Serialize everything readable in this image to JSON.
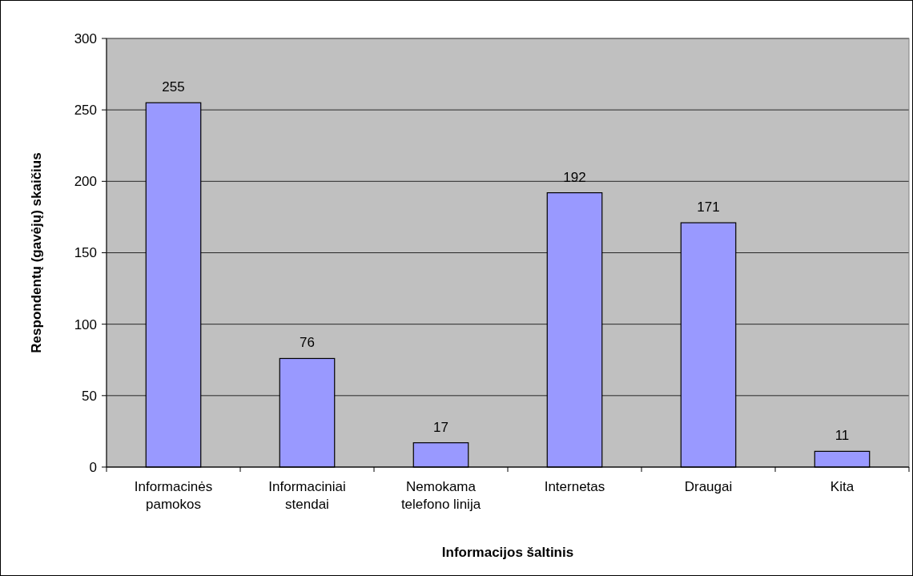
{
  "chart_data": {
    "type": "bar",
    "xlabel": "Informacijos šaltinis",
    "ylabel": "Respondentų (gavėjų) skaičius",
    "categories": [
      "Informacinės pamokos",
      "Informaciniai stendai",
      "Nemokama telefono linija",
      "Internetas",
      "Draugai",
      "Kita"
    ],
    "values": [
      255,
      76,
      17,
      192,
      171,
      11
    ],
    "color": "#9999ff",
    "ylim": [
      0,
      300
    ],
    "yticks": [
      0,
      50,
      100,
      150,
      200,
      250,
      300
    ],
    "grid": "y",
    "data_labels": true
  }
}
